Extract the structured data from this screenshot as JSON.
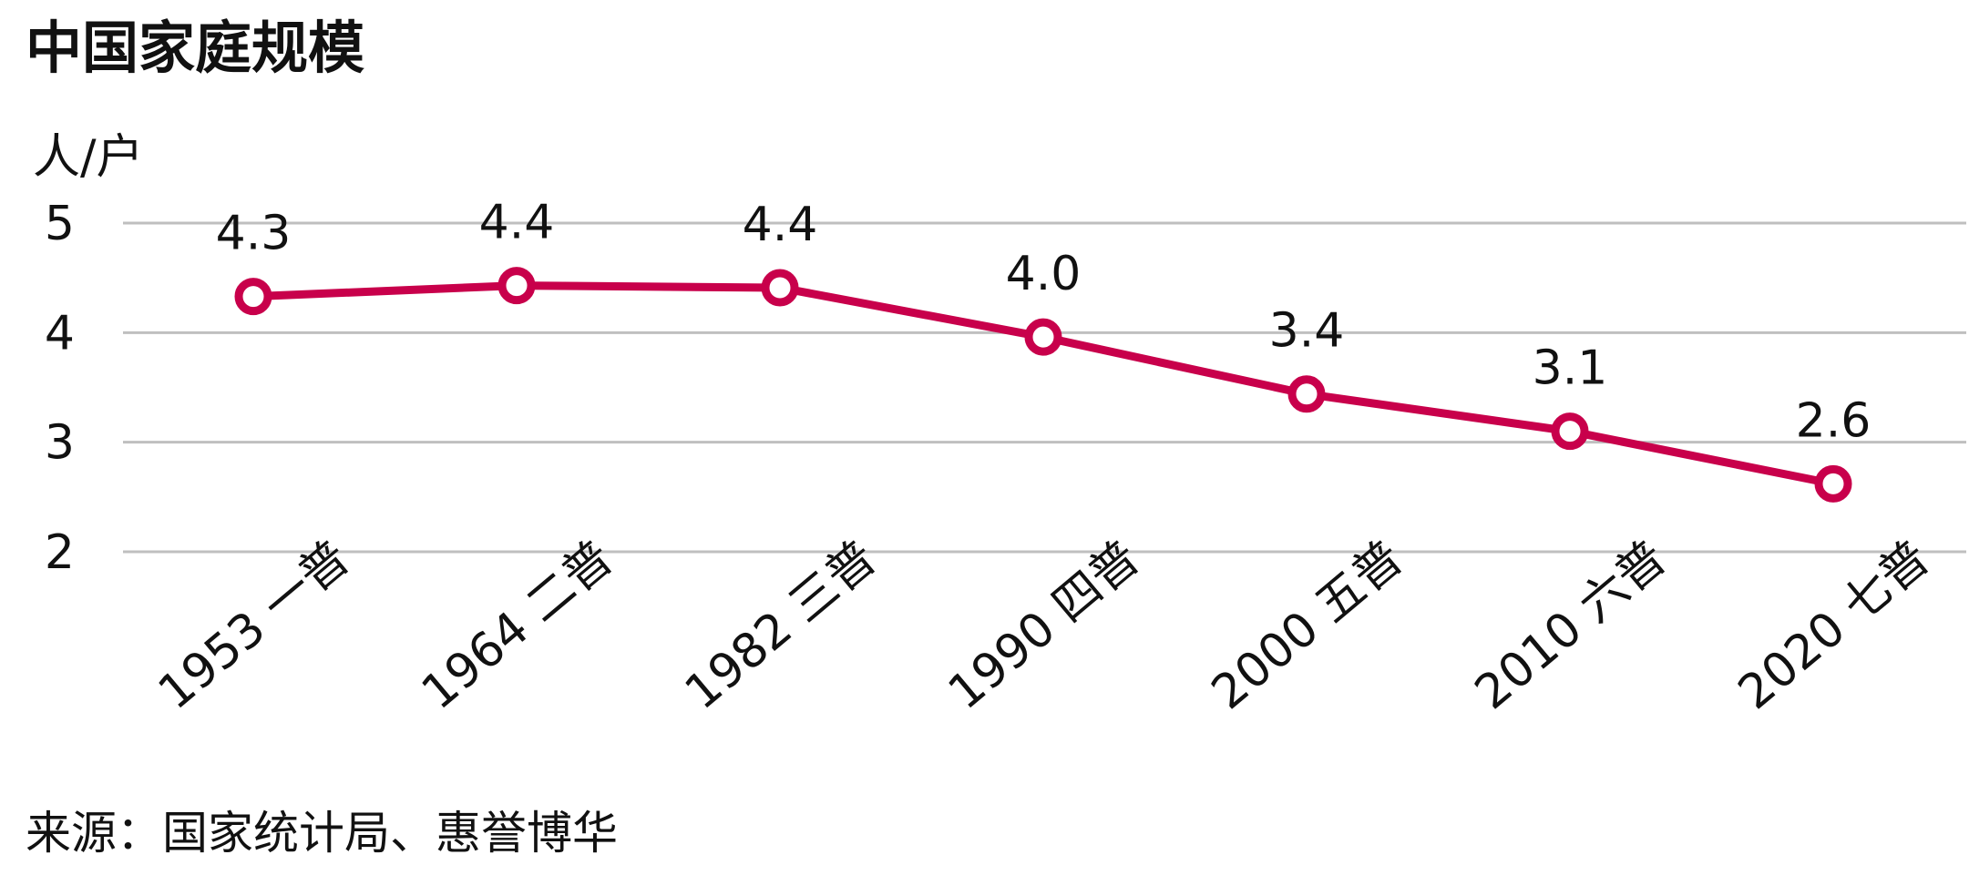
{
  "title": "中国家庭规模",
  "source": "来源：国家统计局、惠誉博华",
  "chart_data": {
    "type": "line",
    "title": "中国家庭规模",
    "ylabel": "人/户",
    "xlabel": "",
    "categories": [
      "1953 一普",
      "1964 二普",
      "1982 三普",
      "1990 四普",
      "2000 五普",
      "2010 六普",
      "2020 七普"
    ],
    "values": [
      4.3,
      4.4,
      4.4,
      4.0,
      3.4,
      3.1,
      2.6
    ],
    "plotted_values": [
      4.33,
      4.43,
      4.41,
      3.96,
      3.44,
      3.1,
      2.62
    ],
    "data_labels": [
      "4.3",
      "4.4",
      "4.4",
      "4.0",
      "3.4",
      "3.1",
      "2.6"
    ],
    "yticks": [
      "2",
      "3",
      "4",
      "5"
    ],
    "ylim": [
      2,
      5
    ],
    "grid": true,
    "legend": "none",
    "line_color": "#C8004B",
    "grid_color": "#BFBFBF"
  }
}
